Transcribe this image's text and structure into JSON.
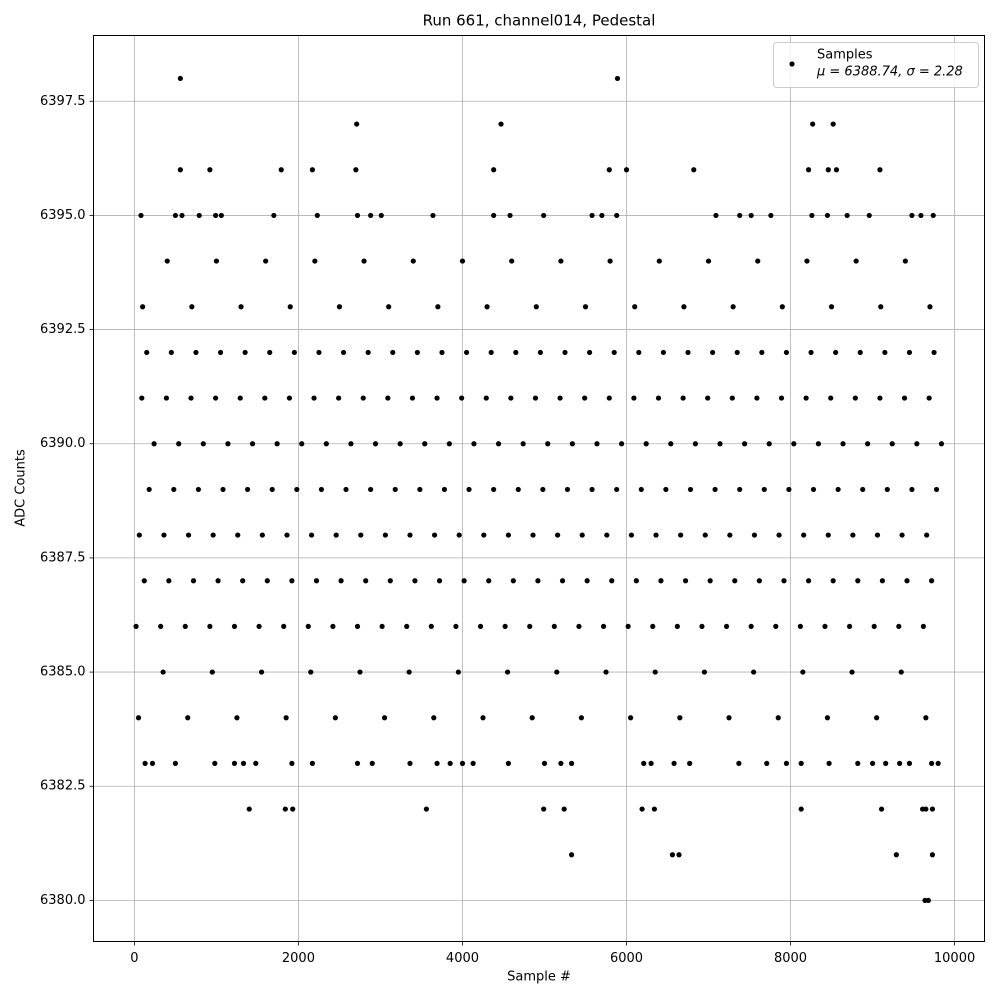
{
  "chart_data": {
    "type": "scatter",
    "title": "Run 661, channel014, Pedestal",
    "x_label": "Sample #",
    "y_label": "ADC Counts",
    "legend_stats": "μ = 6388.74, σ = 2.28",
    "legend_position": "upper right",
    "grid": true,
    "xlim": [
      -499,
      10365
    ],
    "ylim": [
      6379.1,
      6398.94
    ],
    "xticks": [
      0,
      2000,
      4000,
      6000,
      8000,
      10000
    ],
    "yticks": [
      {
        "value": 6380,
        "label": "6380.0"
      },
      {
        "value": 6382.5,
        "label": "6382.5"
      },
      {
        "value": 6385,
        "label": "6385.0"
      },
      {
        "value": 6387.5,
        "label": "6387.5"
      },
      {
        "value": 6390,
        "label": "6390.0"
      },
      {
        "value": 6392.5,
        "label": "6392.5"
      },
      {
        "value": 6395,
        "label": "6395.0"
      },
      {
        "value": 6397.5,
        "label": "6397.5"
      }
    ],
    "x": [
      20,
      320,
      620,
      920,
      1220,
      1520,
      1820,
      2120,
      2420,
      2720,
      3020,
      3320,
      3620,
      3920,
      4220,
      4520,
      4820,
      5120,
      5420,
      5720,
      6020,
      6320,
      6620,
      6920,
      7220,
      7520,
      7820,
      8120,
      8420,
      8720,
      9020,
      9320,
      9620,
      120,
      420,
      720,
      1020,
      1320,
      1620,
      1920,
      2220,
      2520,
      2820,
      3120,
      3420,
      3720,
      4020,
      4320,
      4620,
      4920,
      5220,
      5520,
      5820,
      6120,
      6420,
      6720,
      7020,
      7320,
      7620,
      7920,
      8220,
      8520,
      8820,
      9120,
      9420,
      9720,
      60,
      360,
      660,
      960,
      1260,
      1560,
      1860,
      2160,
      2460,
      2760,
      3060,
      3360,
      3660,
      3960,
      4260,
      4560,
      4860,
      5160,
      5460,
      5760,
      6060,
      6360,
      6660,
      6960,
      7260,
      7560,
      7860,
      8160,
      8460,
      8760,
      9060,
      9360,
      9660,
      180,
      480,
      780,
      1080,
      1380,
      1680,
      1980,
      2280,
      2580,
      2880,
      3180,
      3480,
      3780,
      4080,
      4380,
      4680,
      4980,
      5280,
      5580,
      5880,
      6180,
      6480,
      6780,
      7080,
      7380,
      7680,
      7980,
      8280,
      8580,
      8880,
      9180,
      9480,
      9780,
      240,
      540,
      840,
      1140,
      1440,
      1740,
      2040,
      2340,
      2640,
      2940,
      3240,
      3540,
      3840,
      4140,
      4440,
      4740,
      5040,
      5340,
      5640,
      5940,
      6240,
      6540,
      6840,
      7140,
      7440,
      7740,
      8040,
      8340,
      8640,
      8940,
      9240,
      9540,
      9840,
      90,
      390,
      690,
      990,
      1290,
      1590,
      1890,
      2190,
      2490,
      2790,
      3090,
      3390,
      3690,
      3990,
      4290,
      4590,
      4890,
      5190,
      5490,
      5790,
      6090,
      6390,
      6690,
      6990,
      7290,
      7590,
      7890,
      8190,
      8490,
      8790,
      9090,
      9390,
      9690,
      150,
      450,
      750,
      1050,
      1350,
      1650,
      1950,
      2250,
      2550,
      2850,
      3150,
      3450,
      3750,
      4050,
      4350,
      4650,
      4950,
      5250,
      5550,
      5850,
      6150,
      6450,
      6750,
      7050,
      7350,
      7650,
      7950,
      8250,
      8550,
      8850,
      9150,
      9450,
      9750,
      50,
      650,
      1250,
      1850,
      2450,
      3050,
      3650,
      4250,
      4850,
      5450,
      6050,
      6650,
      7250,
      7850,
      8450,
      9050,
      9650,
      350,
      950,
      1550,
      2150,
      2750,
      3350,
      3950,
      4550,
      5150,
      5750,
      6350,
      6950,
      7550,
      8150,
      8750,
      9350,
      100,
      700,
      1300,
      1900,
      2500,
      3100,
      3700,
      4300,
      4900,
      5500,
      6100,
      6700,
      7300,
      7900,
      8500,
      9100,
      9700,
      400,
      1000,
      1600,
      2200,
      2800,
      3400,
      4000,
      4600,
      5200,
      5800,
      6400,
      7000,
      7600,
      8200,
      8800,
      9400,
      560,
      5890,
      2710,
      4470,
      8270,
      8520,
      560,
      920,
      1790,
      2170,
      2700,
      4380,
      5790,
      6000,
      6820,
      8220,
      8460,
      8560,
      9090,
      80,
      500,
      580,
      790,
      990,
      1060,
      1700,
      2230,
      2720,
      2880,
      3010,
      3640,
      4380,
      4580,
      4990,
      5580,
      5700,
      5880,
      7090,
      7380,
      7520,
      7760,
      8260,
      8450,
      8690,
      8960,
      9480,
      9590,
      9740,
      130,
      220,
      500,
      980,
      1220,
      1330,
      1480,
      1920,
      2170,
      2720,
      2900,
      3360,
      3690,
      3850,
      4000,
      4130,
      4560,
      5000,
      5200,
      5330,
      6210,
      6300,
      6580,
      6770,
      7370,
      7710,
      7950,
      8130,
      8470,
      8820,
      9000,
      9160,
      9330,
      9450,
      9720,
      9800,
      1400,
      1840,
      1930,
      3560,
      4990,
      5240,
      6190,
      6340,
      8130,
      9110,
      9610,
      9650,
      9730,
      5330,
      6560,
      6640,
      9290,
      9730,
      9640,
      9680
    ],
    "series": [
      {
        "name": "Samples",
        "color": "#000000",
        "values": [
          6386,
          6386,
          6386,
          6386,
          6386,
          6386,
          6386,
          6386,
          6386,
          6386,
          6386,
          6386,
          6386,
          6386,
          6386,
          6386,
          6386,
          6386,
          6386,
          6386,
          6386,
          6386,
          6386,
          6386,
          6386,
          6386,
          6386,
          6386,
          6386,
          6386,
          6386,
          6386,
          6386,
          6387,
          6387,
          6387,
          6387,
          6387,
          6387,
          6387,
          6387,
          6387,
          6387,
          6387,
          6387,
          6387,
          6387,
          6387,
          6387,
          6387,
          6387,
          6387,
          6387,
          6387,
          6387,
          6387,
          6387,
          6387,
          6387,
          6387,
          6387,
          6387,
          6387,
          6387,
          6387,
          6387,
          6388,
          6388,
          6388,
          6388,
          6388,
          6388,
          6388,
          6388,
          6388,
          6388,
          6388,
          6388,
          6388,
          6388,
          6388,
          6388,
          6388,
          6388,
          6388,
          6388,
          6388,
          6388,
          6388,
          6388,
          6388,
          6388,
          6388,
          6388,
          6388,
          6388,
          6388,
          6388,
          6388,
          6389,
          6389,
          6389,
          6389,
          6389,
          6389,
          6389,
          6389,
          6389,
          6389,
          6389,
          6389,
          6389,
          6389,
          6389,
          6389,
          6389,
          6389,
          6389,
          6389,
          6389,
          6389,
          6389,
          6389,
          6389,
          6389,
          6389,
          6389,
          6389,
          6389,
          6389,
          6389,
          6389,
          6390,
          6390,
          6390,
          6390,
          6390,
          6390,
          6390,
          6390,
          6390,
          6390,
          6390,
          6390,
          6390,
          6390,
          6390,
          6390,
          6390,
          6390,
          6390,
          6390,
          6390,
          6390,
          6390,
          6390,
          6390,
          6390,
          6390,
          6390,
          6390,
          6390,
          6390,
          6390,
          6390,
          6391,
          6391,
          6391,
          6391,
          6391,
          6391,
          6391,
          6391,
          6391,
          6391,
          6391,
          6391,
          6391,
          6391,
          6391,
          6391,
          6391,
          6391,
          6391,
          6391,
          6391,
          6391,
          6391,
          6391,
          6391,
          6391,
          6391,
          6391,
          6391,
          6391,
          6391,
          6391,
          6391,
          6392,
          6392,
          6392,
          6392,
          6392,
          6392,
          6392,
          6392,
          6392,
          6392,
          6392,
          6392,
          6392,
          6392,
          6392,
          6392,
          6392,
          6392,
          6392,
          6392,
          6392,
          6392,
          6392,
          6392,
          6392,
          6392,
          6392,
          6392,
          6392,
          6392,
          6392,
          6392,
          6392,
          6384,
          6384,
          6384,
          6384,
          6384,
          6384,
          6384,
          6384,
          6384,
          6384,
          6384,
          6384,
          6384,
          6384,
          6384,
          6384,
          6384,
          6385,
          6385,
          6385,
          6385,
          6385,
          6385,
          6385,
          6385,
          6385,
          6385,
          6385,
          6385,
          6385,
          6385,
          6385,
          6385,
          6393,
          6393,
          6393,
          6393,
          6393,
          6393,
          6393,
          6393,
          6393,
          6393,
          6393,
          6393,
          6393,
          6393,
          6393,
          6393,
          6393,
          6394,
          6394,
          6394,
          6394,
          6394,
          6394,
          6394,
          6394,
          6394,
          6394,
          6394,
          6394,
          6394,
          6394,
          6394,
          6394,
          6398,
          6398,
          6397,
          6397,
          6397,
          6397,
          6396,
          6396,
          6396,
          6396,
          6396,
          6396,
          6396,
          6396,
          6396,
          6396,
          6396,
          6396,
          6396,
          6395,
          6395,
          6395,
          6395,
          6395,
          6395,
          6395,
          6395,
          6395,
          6395,
          6395,
          6395,
          6395,
          6395,
          6395,
          6395,
          6395,
          6395,
          6395,
          6395,
          6395,
          6395,
          6395,
          6395,
          6395,
          6395,
          6395,
          6395,
          6395,
          6383,
          6383,
          6383,
          6383,
          6383,
          6383,
          6383,
          6383,
          6383,
          6383,
          6383,
          6383,
          6383,
          6383,
          6383,
          6383,
          6383,
          6383,
          6383,
          6383,
          6383,
          6383,
          6383,
          6383,
          6383,
          6383,
          6383,
          6383,
          6383,
          6383,
          6383,
          6383,
          6383,
          6383,
          6383,
          6383,
          6382,
          6382,
          6382,
          6382,
          6382,
          6382,
          6382,
          6382,
          6382,
          6382,
          6382,
          6382,
          6382,
          6381,
          6381,
          6381,
          6381,
          6381,
          6380,
          6380
        ]
      }
    ]
  }
}
